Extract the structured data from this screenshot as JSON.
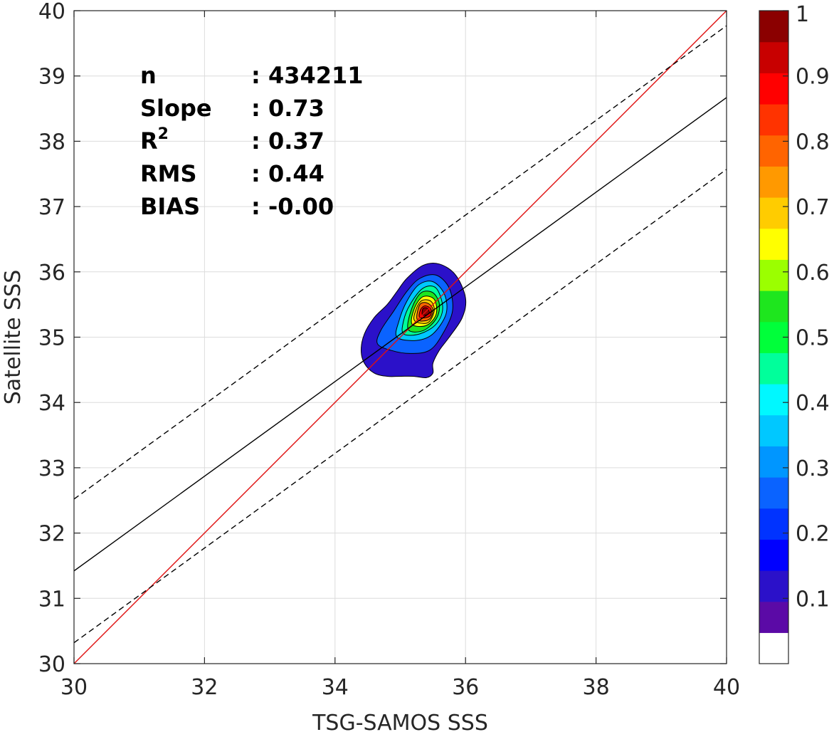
{
  "chart_data": {
    "type": "heatmap",
    "subtype": "density-contour-scatter",
    "xlabel": "TSG-SAMOS SSS",
    "ylabel": "Satellite SSS",
    "xlim": [
      30,
      40
    ],
    "ylim": [
      30,
      40
    ],
    "xticks": [
      30,
      32,
      34,
      36,
      38,
      40
    ],
    "yticks": [
      30,
      31,
      32,
      33,
      34,
      35,
      36,
      37,
      38,
      39,
      40
    ],
    "grid": true,
    "stats": [
      {
        "label": "n",
        "value": ": 434211"
      },
      {
        "label": "Slope",
        "value": ": 0.73"
      },
      {
        "label": "R",
        "label_sup": "2",
        "value": ": 0.37"
      },
      {
        "label": "RMS",
        "value": ": 0.44"
      },
      {
        "label": "BIAS",
        "value": ": -0.00"
      }
    ],
    "lines": [
      {
        "kind": "one-to-one",
        "color": "#e01010",
        "style": "solid",
        "points": [
          [
            30,
            30
          ],
          [
            40,
            40
          ]
        ]
      },
      {
        "kind": "regression-fit",
        "color": "#000000",
        "style": "solid",
        "points": [
          [
            30,
            31.42
          ],
          [
            40,
            38.67
          ]
        ]
      },
      {
        "kind": "upper-bound",
        "color": "#000000",
        "style": "dashed",
        "points": [
          [
            30,
            32.52
          ],
          [
            40,
            39.77
          ]
        ]
      },
      {
        "kind": "lower-bound",
        "color": "#000000",
        "style": "dashed",
        "points": [
          [
            30,
            30.32
          ],
          [
            40,
            37.57
          ]
        ]
      }
    ],
    "density_peak": {
      "x": 35.4,
      "y": 35.4
    },
    "contour_levels": [
      {
        "level": 0.05,
        "outline": [
          [
            34.45,
            34.6
          ],
          [
            34.6,
            34.45
          ],
          [
            34.8,
            34.4
          ],
          [
            35.0,
            34.4
          ],
          [
            35.2,
            34.4
          ],
          [
            35.4,
            34.38
          ],
          [
            35.5,
            34.45
          ],
          [
            35.5,
            34.6
          ],
          [
            35.6,
            34.8
          ],
          [
            35.75,
            35.0
          ],
          [
            35.95,
            35.3
          ],
          [
            36.0,
            35.6
          ],
          [
            35.85,
            35.95
          ],
          [
            35.6,
            36.12
          ],
          [
            35.35,
            36.1
          ],
          [
            35.1,
            35.9
          ],
          [
            34.95,
            35.7
          ],
          [
            34.8,
            35.5
          ],
          [
            34.6,
            35.3
          ],
          [
            34.45,
            35.05
          ],
          [
            34.4,
            34.8
          ]
        ]
      },
      {
        "level": 0.15,
        "outline": [
          [
            34.65,
            34.9
          ],
          [
            34.85,
            34.8
          ],
          [
            35.15,
            34.75
          ],
          [
            35.45,
            34.8
          ],
          [
            35.65,
            35.05
          ],
          [
            35.8,
            35.4
          ],
          [
            35.75,
            35.75
          ],
          [
            35.55,
            35.95
          ],
          [
            35.3,
            35.9
          ],
          [
            35.1,
            35.7
          ],
          [
            34.9,
            35.4
          ],
          [
            34.7,
            35.1
          ]
        ]
      },
      {
        "level": 0.25,
        "outline": [
          [
            34.95,
            35.0
          ],
          [
            35.25,
            34.95
          ],
          [
            35.5,
            35.05
          ],
          [
            35.7,
            35.35
          ],
          [
            35.68,
            35.65
          ],
          [
            35.5,
            35.85
          ],
          [
            35.28,
            35.8
          ],
          [
            35.1,
            35.55
          ],
          [
            34.98,
            35.25
          ]
        ]
      },
      {
        "level": 0.35,
        "outline": [
          [
            35.05,
            35.05
          ],
          [
            35.3,
            35.05
          ],
          [
            35.55,
            35.2
          ],
          [
            35.65,
            35.45
          ],
          [
            35.55,
            35.75
          ],
          [
            35.35,
            35.75
          ],
          [
            35.15,
            35.5
          ],
          [
            35.05,
            35.25
          ]
        ]
      },
      {
        "level": 0.45,
        "outline": [
          [
            35.12,
            35.12
          ],
          [
            35.35,
            35.1
          ],
          [
            35.55,
            35.28
          ],
          [
            35.6,
            35.5
          ],
          [
            35.5,
            35.68
          ],
          [
            35.32,
            35.68
          ],
          [
            35.18,
            35.45
          ]
        ]
      },
      {
        "level": 0.55,
        "outline": [
          [
            35.18,
            35.2
          ],
          [
            35.4,
            35.18
          ],
          [
            35.55,
            35.35
          ],
          [
            35.52,
            35.58
          ],
          [
            35.35,
            35.62
          ],
          [
            35.22,
            35.45
          ]
        ]
      },
      {
        "level": 0.65,
        "outline": [
          [
            35.22,
            35.25
          ],
          [
            35.42,
            35.22
          ],
          [
            35.52,
            35.4
          ],
          [
            35.47,
            35.55
          ],
          [
            35.33,
            35.56
          ],
          [
            35.24,
            35.42
          ]
        ]
      },
      {
        "level": 0.75,
        "outline": [
          [
            35.26,
            35.27
          ],
          [
            35.44,
            35.27
          ],
          [
            35.5,
            35.42
          ],
          [
            35.42,
            35.52
          ],
          [
            35.3,
            35.5
          ]
        ]
      },
      {
        "level": 0.85,
        "outline": [
          [
            35.3,
            35.3
          ],
          [
            35.45,
            35.32
          ],
          [
            35.47,
            35.43
          ],
          [
            35.38,
            35.48
          ],
          [
            35.31,
            35.42
          ]
        ]
      },
      {
        "level": 0.95,
        "outline": [
          [
            35.34,
            35.34
          ],
          [
            35.44,
            35.36
          ],
          [
            35.42,
            35.44
          ],
          [
            35.35,
            35.44
          ]
        ]
      }
    ],
    "colorbar": {
      "ticks": [
        "0.1",
        "0.2",
        "0.3",
        "0.4",
        "0.5",
        "0.6",
        "0.7",
        "0.8",
        "0.9",
        "1"
      ],
      "tick_values": [
        0.1,
        0.2,
        0.3,
        0.4,
        0.5,
        0.6,
        0.7,
        0.8,
        0.9,
        1.0
      ],
      "range": [
        0,
        1
      ],
      "colors": [
        "#ffffff",
        "#5b0aa6",
        "#2b11c9",
        "#0000ff",
        "#0033ff",
        "#0a63ff",
        "#0096ff",
        "#00c8ff",
        "#00f8ff",
        "#00ff9b",
        "#00ff3a",
        "#1ee61e",
        "#9bff00",
        "#ffff00",
        "#ffcc00",
        "#ff9900",
        "#ff6400",
        "#ff3300",
        "#ff0000",
        "#c80000",
        "#8b0000"
      ]
    }
  }
}
